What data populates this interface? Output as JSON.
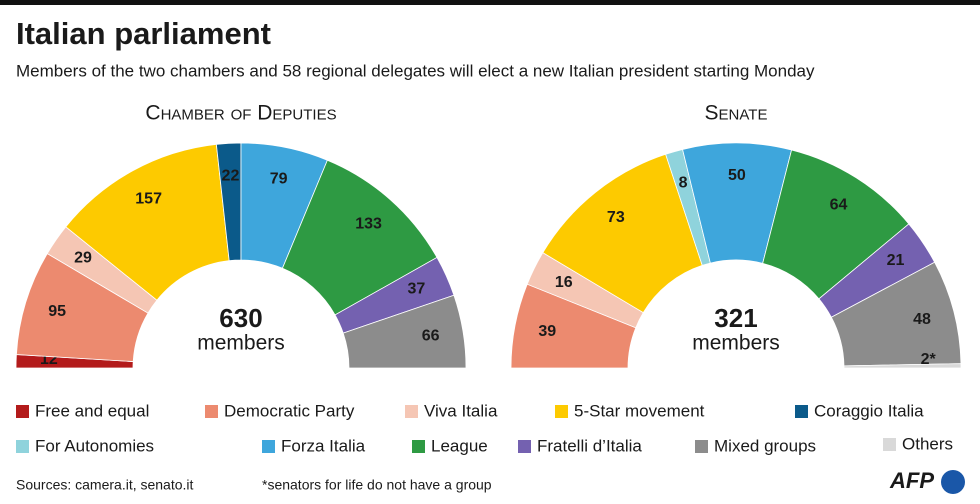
{
  "title": "Italian parliament",
  "subtitle": "Members of the two chambers and 58 regional delegates will elect a new Italian president starting Monday",
  "legend": [
    {
      "name": "Free and equal",
      "color": "#b31b1b"
    },
    {
      "name": "Democratic Party",
      "color": "#ec8a6f"
    },
    {
      "name": "Viva Italia",
      "color": "#f5c6b4"
    },
    {
      "name": "5-Star movement",
      "color": "#fdca00"
    },
    {
      "name": "Coraggio Italia",
      "color": "#0b5a8a"
    },
    {
      "name": "For Autonomies",
      "color": "#8fd3dc"
    },
    {
      "name": "Forza Italia",
      "color": "#3ea6dc"
    },
    {
      "name": "League",
      "color": "#2e9a43"
    },
    {
      "name": "Fratelli d’Italia",
      "color": "#7461b0"
    },
    {
      "name": "Mixed groups",
      "color": "#8c8c8c"
    },
    {
      "name": "Others",
      "color": "#d9d9d9"
    }
  ],
  "chart_data": [
    {
      "type": "half-donut",
      "title": "Chamber of Deputies",
      "total": 630,
      "total_label": "members",
      "categories": [
        "Free and equal",
        "Democratic Party",
        "Viva Italia",
        "5-Star movement",
        "Coraggio Italia",
        "Forza Italia",
        "League",
        "Fratelli d’Italia",
        "Mixed groups"
      ],
      "values": [
        12,
        95,
        29,
        157,
        22,
        79,
        133,
        37,
        66
      ]
    },
    {
      "type": "half-donut",
      "title": "Senate",
      "total": 321,
      "total_label": "members",
      "categories": [
        "Democratic Party",
        "Viva Italia",
        "5-Star movement",
        "For Autonomies",
        "Forza Italia",
        "League",
        "Fratelli d’Italia",
        "Mixed groups",
        "Others"
      ],
      "values": [
        39,
        16,
        73,
        8,
        50,
        64,
        21,
        48,
        2
      ],
      "value_labels": [
        "39",
        "16",
        "73",
        "8",
        "50",
        "64",
        "21",
        "48",
        "2*"
      ]
    }
  ],
  "sources": "Sources: camera.it, senato.it",
  "footnote": "*senators for life do not have a group",
  "logo": "AFP"
}
